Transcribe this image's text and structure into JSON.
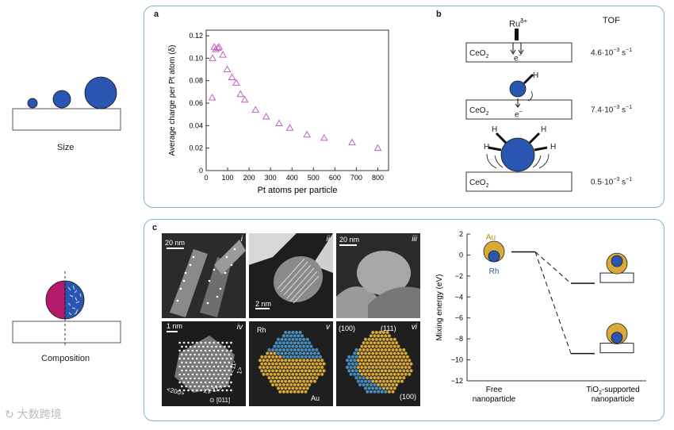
{
  "left": {
    "size_label": "Size",
    "composition_label": "Composition"
  },
  "panel_a": {
    "letter": "a",
    "chart_data": {
      "type": "scatter",
      "xlabel": "Pt atoms per particle",
      "ylabel": "Average charge per Pt atom (δ)",
      "xlim": [
        0,
        850
      ],
      "ylim": [
        0,
        0.125
      ],
      "xticks": [
        0,
        100,
        200,
        300,
        400,
        500,
        600,
        700,
        800
      ],
      "yticks": [
        0,
        0.02,
        0.04,
        0.06,
        0.08,
        0.1,
        0.12
      ],
      "ytick_labels": [
        "0",
        "0.02",
        "0.04",
        "0.06",
        "0.08",
        "0.10",
        "0.12"
      ],
      "marker": "open-triangle",
      "marker_color": "#c060c0",
      "points": [
        [
          28,
          0.065
        ],
        [
          30,
          0.1
        ],
        [
          38,
          0.11
        ],
        [
          45,
          0.108
        ],
        [
          55,
          0.109
        ],
        [
          60,
          0.11
        ],
        [
          78,
          0.103
        ],
        [
          98,
          0.09
        ],
        [
          120,
          0.083
        ],
        [
          140,
          0.078
        ],
        [
          160,
          0.068
        ],
        [
          180,
          0.063
        ],
        [
          230,
          0.054
        ],
        [
          280,
          0.048
        ],
        [
          340,
          0.042
        ],
        [
          390,
          0.038
        ],
        [
          470,
          0.032
        ],
        [
          550,
          0.029
        ],
        [
          680,
          0.025
        ],
        [
          800,
          0.02
        ]
      ]
    }
  },
  "panel_b": {
    "letter": "b",
    "tof_header": "TOF",
    "rows": [
      {
        "support": "CeO",
        "sub": "2",
        "tof": "4.6·10",
        "exp": "−3",
        "unit": " s",
        "unitexp": "−1"
      },
      {
        "support": "CeO",
        "sub": "2",
        "tof": "7.4·10",
        "exp": "−3",
        "unit": " s",
        "unitexp": "−1"
      },
      {
        "support": "CeO",
        "sub": "2",
        "tof": "0.5·10",
        "exp": "−3",
        "unit": " s",
        "unitexp": "−1"
      }
    ],
    "ru_label": "Ru",
    "ru_sup": "δ+",
    "electron": "e",
    "electron_sup": "−",
    "h_label": "H"
  },
  "panel_c": {
    "letter": "c",
    "micro_tags": [
      "i",
      "ii",
      "iii",
      "iv",
      "v",
      "vi"
    ],
    "scale_bars": [
      "20 nm",
      "2 nm",
      "20 nm",
      "1 nm"
    ],
    "labels": {
      "rh": "Rh",
      "au": "Au",
      "f100a": "(100)",
      "f111": "(111)",
      "f100b": "(100)",
      "d200": "<200>",
      "d1m11": "<1-11>",
      "d11m1": "<11-1>",
      "zone": "[011]"
    },
    "chart_data": {
      "type": "line",
      "ylabel": "Mixing energy (eV)",
      "ylim": [
        -12,
        2
      ],
      "yticks": [
        2,
        0,
        -2,
        -4,
        -6,
        -8,
        -10,
        -12
      ],
      "categories": [
        "Free nanoparticle",
        "TiO2-supported nanoparticle"
      ],
      "levels": [
        {
          "name": "free",
          "value": 0.3
        },
        {
          "name": "supported-upper",
          "value": -2.7
        },
        {
          "name": "supported-lower",
          "value": -9.4
        }
      ],
      "legend": {
        "au": "Au",
        "rh": "Rh"
      },
      "xlabel_free_1": "Free",
      "xlabel_free_2": "nanoparticle",
      "xlabel_sup_1": "TiO",
      "xlabel_sup_sub": "2",
      "xlabel_sup_2": "-supported",
      "xlabel_sup_3": "nanoparticle"
    }
  },
  "watermark": "大数跨境"
}
